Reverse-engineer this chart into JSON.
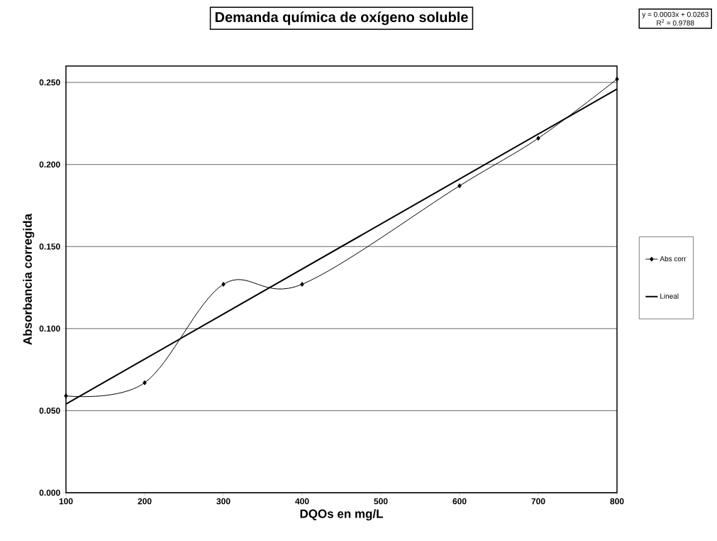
{
  "chart_data": {
    "type": "line",
    "title": "Demanda química de oxígeno soluble",
    "xlabel": "DQOs en mg/L",
    "ylabel": "Absorbancia corregida",
    "annotations": [
      "y = 0.0003x + 0.0263",
      "R$^{2}$ = 0.9788"
    ],
    "x": [
      100,
      200,
      300,
      400,
      600,
      700,
      800
    ],
    "series": [
      {
        "name": "Abs corr",
        "color": "#000000",
        "marker": "diamond",
        "values": [
          0.059,
          0.067,
          0.127,
          0.127,
          0.187,
          0.216,
          0.252
        ]
      },
      {
        "name": "Lineal",
        "color": "#000000",
        "marker": "none",
        "x": [
          100,
          800
        ],
        "values": [
          0.054,
          0.246
        ]
      }
    ],
    "xlim": [
      100,
      800
    ],
    "xticks": [
      100,
      200,
      300,
      400,
      500,
      600,
      700,
      800
    ],
    "ylim": [
      0,
      0.26
    ],
    "yticks": [
      {
        "value": 0,
        "label": "0.000"
      },
      {
        "value": 0.05,
        "label": "0.050"
      },
      {
        "value": 0.1,
        "label": "0.100"
      },
      {
        "value": 0.15,
        "label": "0.150"
      },
      {
        "value": 0.2,
        "label": "0.200"
      },
      {
        "value": 0.25,
        "label": "0.250"
      }
    ],
    "grid": "y",
    "legend": "right"
  }
}
